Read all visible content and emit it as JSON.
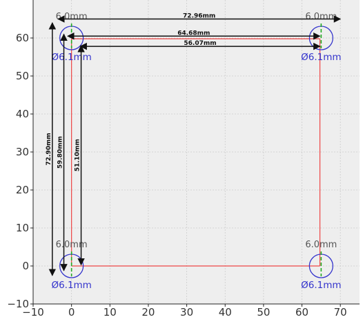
{
  "chart_data": {
    "type": "line",
    "title": "",
    "xlabel": "",
    "ylabel": "",
    "xlim": [
      -10,
      75
    ],
    "ylim": [
      -10,
      70
    ],
    "x_ticks": [
      -10,
      0,
      10,
      20,
      30,
      40,
      50,
      60,
      70
    ],
    "y_ticks": [
      -10,
      0,
      10,
      20,
      30,
      40,
      50,
      60
    ],
    "grid": true,
    "colors": {
      "background": "#eeeeee",
      "grid": "#cccccc",
      "outline": "#ee4444",
      "hole": "#3333cc",
      "centerline": "#22aa22",
      "dimension": "#111111"
    },
    "outline": [
      [
        0,
        0
      ],
      [
        64.68,
        0
      ],
      [
        64.68,
        59.8
      ],
      [
        0,
        59.8
      ],
      [
        0,
        0
      ]
    ],
    "holes": [
      {
        "x": 0,
        "y": 60,
        "diameter": 6.1,
        "label": "Ø6.1mm",
        "spacing_label": "6.0mm"
      },
      {
        "x": 65,
        "y": 60,
        "diameter": 6.1,
        "label": "Ø6.1mm",
        "spacing_label": "6.0mm"
      },
      {
        "x": 0,
        "y": 0,
        "diameter": 6.1,
        "label": "Ø6.1mm",
        "spacing_label": "6.0mm"
      },
      {
        "x": 65,
        "y": 0,
        "diameter": 6.1,
        "label": "Ø6.1mm",
        "spacing_label": "6.0mm"
      }
    ],
    "dimensions": [
      {
        "label": "72.96mm",
        "orientation": "horizontal",
        "from": [
          -3.5,
          65
        ],
        "to": [
          70,
          65
        ]
      },
      {
        "label": "64.68mm",
        "orientation": "horizontal",
        "from": [
          -1,
          60.5
        ],
        "to": [
          64.68,
          60.5
        ]
      },
      {
        "label": "56.07mm",
        "orientation": "horizontal",
        "from": [
          2.3,
          57.8
        ],
        "to": [
          64.68,
          57.8
        ]
      },
      {
        "label": "72.90mm",
        "orientation": "vertical",
        "from": [
          -5,
          -2.5
        ],
        "to": [
          -5,
          64
        ]
      },
      {
        "label": "59.80mm",
        "orientation": "vertical",
        "from": [
          -2,
          -1.2
        ],
        "to": [
          -2,
          61
        ]
      },
      {
        "label": "51.10mm",
        "orientation": "vertical",
        "from": [
          2.5,
          0.3
        ],
        "to": [
          2.5,
          58
        ]
      }
    ]
  }
}
